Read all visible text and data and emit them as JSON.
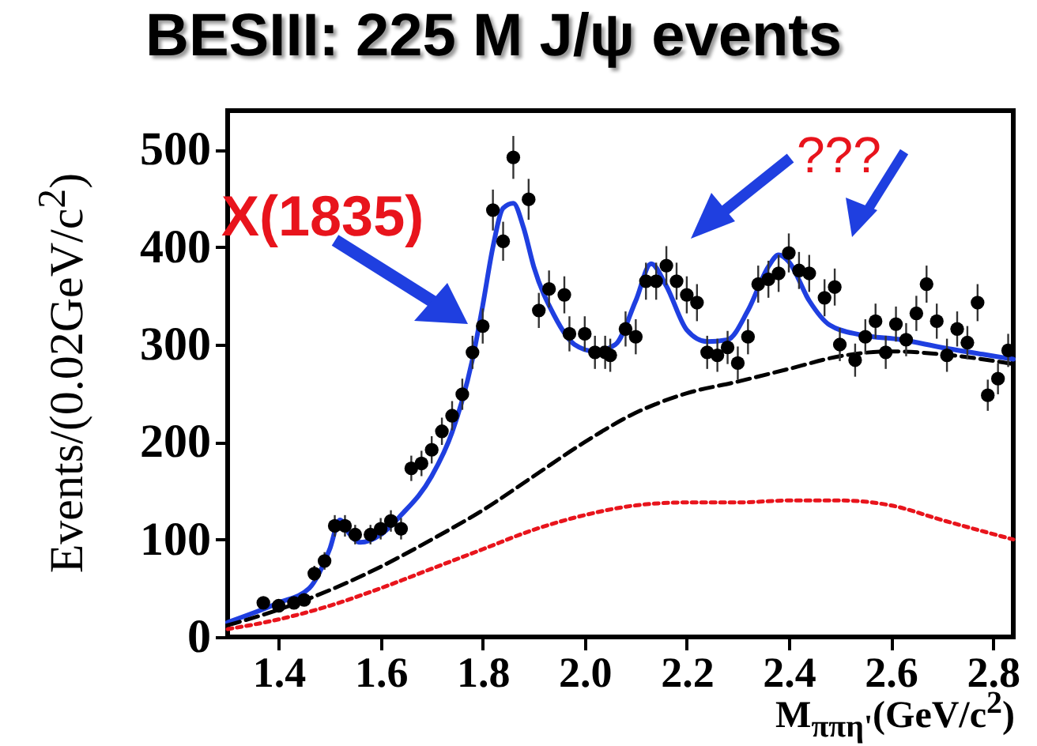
{
  "chart_data": {
    "type": "scatter",
    "title": "BESIII: 225 M J/ψ events",
    "xlabel": "M$_{ππη'}$(GeV/c$^{2}$)",
    "ylabel": "Events/(0.02GeV/c$^{2}$)",
    "xlim": [
      1.3,
      2.84
    ],
    "ylim": [
      0,
      540
    ],
    "xticks": [
      1.4,
      1.6,
      1.8,
      {
        "value": 2,
        "label": "2.0"
      },
      2.2,
      2.4,
      2.6,
      2.8
    ],
    "yticks": [
      0,
      100,
      200,
      300,
      400,
      500
    ],
    "grid": false,
    "annotations": [
      "X(1835)",
      "???"
    ],
    "series": [
      {
        "type": "scatter",
        "color": "#000000",
        "marker": "circle",
        "x": [
          1.37,
          1.4,
          1.43,
          1.45,
          1.47,
          1.49,
          1.51,
          1.53,
          1.55,
          1.58,
          1.6,
          1.62,
          1.64,
          1.66,
          1.68,
          1.7,
          1.72,
          1.74,
          1.76,
          1.78,
          1.8,
          1.82,
          1.84,
          1.86,
          1.89,
          1.91,
          1.93,
          1.96,
          1.97,
          2.0,
          2.02,
          2.04,
          2.05,
          2.08,
          2.1,
          2.12,
          2.14,
          2.16,
          2.18,
          2.2,
          2.22,
          2.24,
          2.26,
          2.28,
          2.3,
          2.32,
          2.34,
          2.36,
          2.38,
          2.4,
          2.42,
          2.44,
          2.47,
          2.49,
          2.5,
          2.53,
          2.55,
          2.57,
          2.59,
          2.61,
          2.63,
          2.65,
          2.67,
          2.69,
          2.71,
          2.73,
          2.75,
          2.77,
          2.79,
          2.81,
          2.83
        ],
        "values": [
          35,
          32,
          35,
          38,
          65,
          78,
          114,
          114,
          105,
          105,
          111,
          119,
          111,
          173,
          178,
          192,
          211,
          227,
          249,
          292,
          319,
          438,
          406,
          492,
          449,
          335,
          357,
          351,
          311,
          311,
          292,
          292,
          289,
          316,
          308,
          365,
          365,
          381,
          365,
          351,
          343,
          292,
          289,
          297,
          281,
          308,
          362,
          367,
          373,
          394,
          376,
          373,
          348,
          359,
          300,
          284,
          308,
          324,
          292,
          321,
          305,
          332,
          362,
          324,
          289,
          316,
          302,
          343,
          248,
          265,
          294
        ],
        "errors": [
          6,
          6,
          6,
          6,
          8,
          9,
          11,
          11,
          10,
          10,
          11,
          11,
          11,
          13,
          13,
          14,
          14,
          15,
          16,
          17,
          18,
          21,
          20,
          22,
          21,
          18,
          19,
          19,
          18,
          18,
          17,
          17,
          17,
          18,
          18,
          19,
          19,
          20,
          19,
          19,
          19,
          17,
          17,
          17,
          17,
          18,
          19,
          19,
          19,
          20,
          19,
          19,
          19,
          19,
          17,
          17,
          18,
          18,
          17,
          18,
          17,
          18,
          19,
          18,
          17,
          18,
          17,
          19,
          16,
          16,
          17
        ]
      },
      {
        "type": "line",
        "color": "#1f3fe0",
        "line_style": "solid",
        "x": [
          1.3,
          1.4,
          1.46,
          1.5,
          1.52,
          1.54,
          1.56,
          1.6,
          1.64,
          1.7,
          1.74,
          1.78,
          1.8,
          1.82,
          1.84,
          1.86,
          1.88,
          1.9,
          1.94,
          1.98,
          2.02,
          2.06,
          2.1,
          2.13,
          2.16,
          2.2,
          2.24,
          2.28,
          2.32,
          2.36,
          2.38,
          2.4,
          2.44,
          2.48,
          2.54,
          2.62,
          2.7,
          2.78,
          2.84
        ],
        "values": [
          15,
          35,
          50,
          90,
          120,
          105,
          97,
          105,
          125,
          165,
          210,
          285,
          340,
          400,
          440,
          445,
          420,
          380,
          330,
          300,
          293,
          300,
          345,
          383,
          360,
          315,
          303,
          305,
          335,
          380,
          392,
          385,
          345,
          320,
          310,
          305,
          297,
          290,
          285
        ]
      },
      {
        "type": "line",
        "color": "#000000",
        "line_style": "dashed",
        "x": [
          1.3,
          1.4,
          1.5,
          1.6,
          1.7,
          1.8,
          1.9,
          2.0,
          2.1,
          2.2,
          2.3,
          2.4,
          2.5,
          2.6,
          2.7,
          2.84
        ],
        "values": [
          12,
          28,
          48,
          72,
          100,
          130,
          165,
          200,
          230,
          250,
          262,
          275,
          288,
          293,
          290,
          280
        ]
      },
      {
        "type": "line",
        "color": "#e8141c",
        "line_style": "dotted",
        "x": [
          1.3,
          1.4,
          1.5,
          1.6,
          1.7,
          1.8,
          1.9,
          2.0,
          2.1,
          2.2,
          2.3,
          2.4,
          2.5,
          2.6,
          2.7,
          2.84
        ],
        "values": [
          8,
          18,
          32,
          50,
          70,
          90,
          110,
          125,
          135,
          138,
          138,
          140,
          140,
          135,
          120,
          100
        ]
      }
    ]
  }
}
